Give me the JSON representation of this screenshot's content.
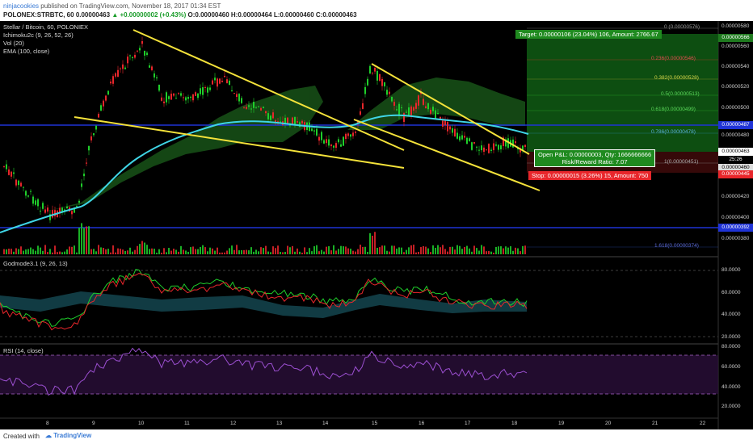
{
  "header": {
    "user": "ninjacookies",
    "published_text": "published on TradingView.com, November 18, 2017 01:34 EST",
    "symbol_line": "POLONEX:STRBTC, 60",
    "ohlc_open": "0.00000463",
    "ohlc_change": "▲ +0.00000002 (+0.43%)",
    "ohlc_rest": "O:0.00000460 H:0.00000464 L:0.00000460 C:0.00000463"
  },
  "legend": {
    "title": "Stellar / Bitcoin, 60, POLONIEX",
    "ichimoku": "Ichimoku2c (9, 26, 52, 26)",
    "vol": "Vol (20)",
    "ema": "EMA (100, close)",
    "godmode": "Godmode3.1 (9, 26, 13)",
    "rsi": "RSI (14, close)"
  },
  "price_axis": [
    "0.00000580",
    "0.00000560",
    "0.00000540",
    "0.00000520",
    "0.00000500",
    "0.00000480",
    "0.00000440",
    "0.00000420",
    "0.00000400",
    "0.00000380"
  ],
  "price_tags": {
    "target_level": "0.00000566",
    "level_487": "0.00000487",
    "current": "0.00000463",
    "countdown": "25:26",
    "current2": "0.00000460",
    "stop": "0.00000445",
    "level_392": "0.00000392"
  },
  "godmode_axis": [
    "80.0000",
    "60.0000",
    "40.0000",
    "20.0000"
  ],
  "rsi_axis": [
    "80.0000",
    "60.0000",
    "40.0000",
    "20.0000"
  ],
  "time_axis": [
    "8",
    "9",
    "10",
    "11",
    "12",
    "13",
    "14",
    "15",
    "16",
    "17",
    "18",
    "19",
    "20",
    "21",
    "22"
  ],
  "fib_levels": [
    {
      "label": "0 (0.00000576)"
    },
    {
      "label": "0.236(0.00000546)"
    },
    {
      "label": "0.382(0.00000528)"
    },
    {
      "label": "0.5(0.00000513)"
    },
    {
      "label": "0.618(0.00000499)"
    },
    {
      "label": "0.786(0.00000478)"
    },
    {
      "label": "1(0.00000451)"
    },
    {
      "label": "1.618(0.00000374)"
    }
  ],
  "position": {
    "target": "Target: 0.00000106 (23.04%) 106, Amount: 2766.67",
    "open_pl": "Open P&L: 0.00000003, Qty: 1666666666",
    "rr": "Risk/Reward Ratio: 7.07",
    "stop": "Stop: 0.00000015 (3.26%) 15, Amount: 750"
  },
  "colors": {
    "bg": "#000000",
    "up": "#1fcf2b",
    "down": "#e8262b",
    "trendline": "#f4e23a",
    "ema": "#3fd5e6",
    "blue_level": "#1f33d6",
    "target_green": "#1f7a1f"
  },
  "footer": {
    "created_with": "Created with",
    "brand": "TradingView"
  }
}
